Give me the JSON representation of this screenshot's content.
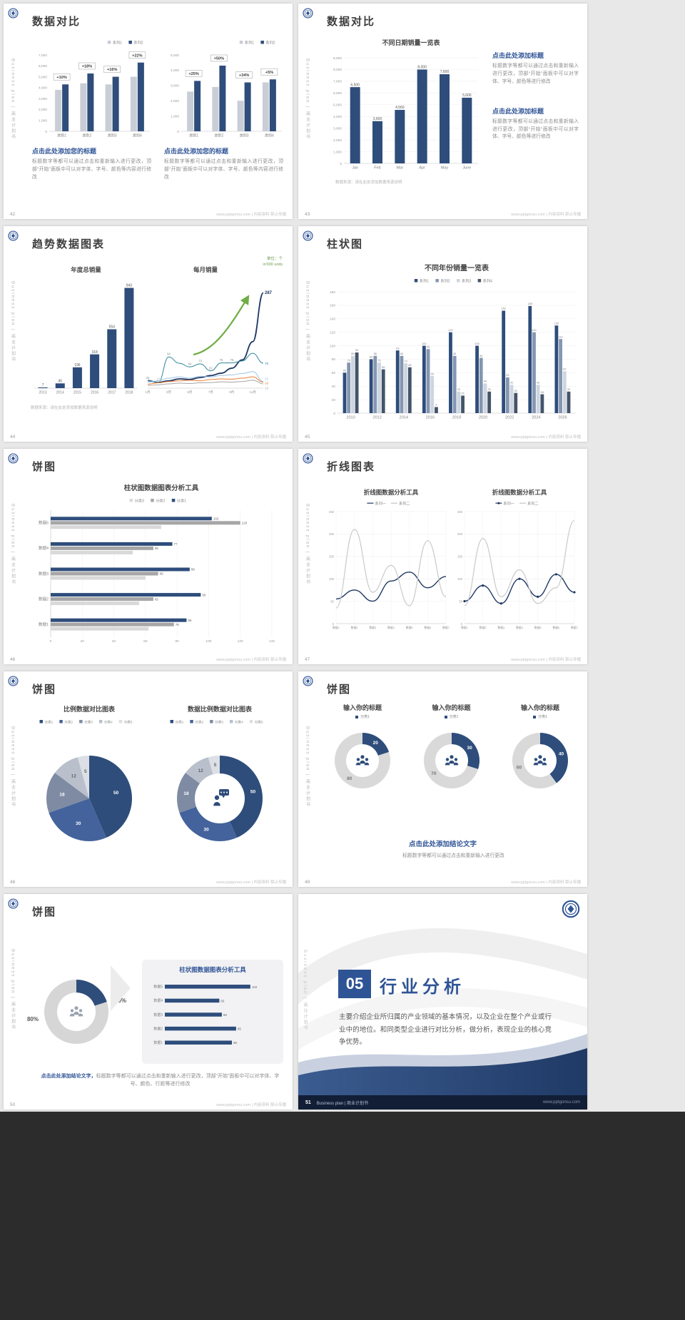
{
  "common": {
    "brand_vertical": "Business plan | 商业计划书",
    "footer_watermark": "www.pptgonsu.com | 内容资料 禁止传播"
  },
  "colors": {
    "navy": "#2e4d7b",
    "dark_navy": "#1f3864",
    "accent": "#2f5496",
    "steel": "#8496b0",
    "slate": "#44546a",
    "gray": "#a6a6a6",
    "silver": "#d9d9d9",
    "light": "#cdd5e0",
    "ash": "#c8cdd6",
    "green": "#70ad47",
    "teal": "#31859b",
    "sky": "#9dc3e6",
    "orange": "#ed7d31"
  },
  "slides": [
    {
      "number": "42",
      "title": "数据对比",
      "charts": [
        {
          "type": "bar",
          "legend": [
            "系列1",
            "系列2"
          ],
          "categories": [
            "类别1",
            "类别2",
            "类别3",
            "类别4"
          ],
          "series": [
            {
              "name": "系列1",
              "values": [
                3800,
                4400,
                4300,
                5000
              ]
            },
            {
              "name": "系列2",
              "values": [
                4300,
                5300,
                5000,
                6300
              ]
            }
          ],
          "callouts": [
            "+10%",
            "+18%",
            "+16%",
            "+22%"
          ],
          "ymax": 7000,
          "ytick_step": 1000
        },
        {
          "type": "bar",
          "legend": [
            "系列1",
            "系列2"
          ],
          "categories": [
            "类别1",
            "类别2",
            "类别3",
            "类别4"
          ],
          "series": [
            {
              "name": "系列1",
              "values": [
                2600,
                2900,
                2000,
                3200
              ]
            },
            {
              "name": "系列2",
              "values": [
                3300,
                4300,
                3200,
                3400
              ]
            }
          ],
          "callouts": [
            "+25%",
            "+50%",
            "+34%",
            "+5%"
          ],
          "ymax": 5000,
          "ytick_step": 1000
        }
      ],
      "blocks": [
        {
          "heading": "点击此处添加您的标题",
          "body": "标题数字等都可以通过点击和重新输入进行更改，顶部“开始”面板中可以对字体、字号、颜色等内容进行修改"
        },
        {
          "heading": "点击此处添加您的标题",
          "body": "标题数字等都可以通过点击和重新输入进行更改，顶部“开始”面板中可以对字体、字号、颜色等内容进行修改"
        }
      ]
    },
    {
      "number": "43",
      "title": "数据对比",
      "chart": {
        "type": "bar",
        "title": "不同日期销量一览表",
        "categories": [
          "Jan",
          "Feb",
          "Mar",
          "Apr",
          "May",
          "June"
        ],
        "values": [
          6500,
          3600,
          4560,
          8000,
          7600,
          5600
        ],
        "ymax": 9000,
        "ytick_step": 1000
      },
      "blocks": [
        {
          "heading": "点击此处添加标题",
          "body": "标题数字等都可以通过点击和重新输入进行更改，顶部“开始”面板中可以对字体、字号、颜色等进行修改"
        },
        {
          "heading": "点击此处添加标题",
          "body": "标题数字等都可以通过点击和重新输入进行更改，顶部“开始”面板中可以对字体、字号、颜色等进行修改"
        }
      ],
      "source_note": "数据来源：请在此处添加数据来源说明"
    },
    {
      "number": "44",
      "title": "趋势数据图表",
      "unit_note_1": "单位：个",
      "unit_note_2": "in'000 units",
      "bar": {
        "type": "bar",
        "title": "年度总销量",
        "categories": [
          "2013",
          "2014",
          "2015",
          "2016",
          "2017",
          "2018"
        ],
        "values": [
          7,
          45,
          196,
          318,
          554,
          943
        ],
        "ymax": 1000
      },
      "line": {
        "type": "line",
        "title": "每月销量",
        "xlabels": [
          "1月",
          "3月",
          "5月",
          "7月",
          "9月",
          "11月"
        ],
        "ymax": 320,
        "series": [
          {
            "name": "系列1",
            "color": "dark_navy",
            "width": 1.8,
            "values": [
              23,
              17,
              22,
              28,
              26,
              32,
              38,
              45,
              60,
              85,
              140,
              287
            ],
            "end": "287"
          },
          {
            "name": "系列2",
            "color": "teal",
            "width": 1,
            "values": [
              23,
              17,
              94,
              75,
              64,
              73,
              52,
              76,
              76,
              82,
              105,
              75
            ],
            "end": "75",
            "point_labels": [
              "23",
              "17",
              "94",
              "",
              "64",
              "73",
              "52",
              "76",
              "76",
              "",
              "",
              ""
            ]
          },
          {
            "name": "系列3",
            "color": "sky",
            "width": 1,
            "values": [
              18,
              22,
              30,
              34,
              30,
              36,
              34,
              38,
              40,
              44,
              50,
              20
            ],
            "end": "20"
          },
          {
            "name": "系列4",
            "color": "orange",
            "width": 1,
            "values": [
              12,
              16,
              20,
              22,
              24,
              22,
              26,
              28,
              27,
              30,
              34,
              18
            ],
            "end": "18"
          },
          {
            "name": "系列5",
            "color": "gray",
            "width": 1,
            "values": [
              8,
              10,
              13,
              15,
              14,
              16,
              17,
              19,
              18,
              20,
              24,
              13
            ],
            "end": "13"
          }
        ]
      },
      "source_note": "数据来源：请在此处添加数据来源说明"
    },
    {
      "number": "45",
      "title": "柱状图",
      "chart": {
        "type": "bar",
        "title": "不同年份销量一览表",
        "legend": [
          "系列1",
          "系列2",
          "系列3",
          "系列4"
        ],
        "categories": [
          "2010",
          "2012",
          "2014",
          "2016",
          "2018",
          "2020",
          "2022",
          "2024",
          "2026"
        ],
        "series": [
          {
            "name": "系列1",
            "values": [
              60,
              80,
              93,
              100,
              120,
              100,
              152,
              159,
              130
            ]
          },
          {
            "name": "系列2",
            "values": [
              75,
              85,
              85,
              95,
              85,
              82,
              53,
              120,
              110
            ]
          },
          {
            "name": "系列3",
            "values": [
              85,
              75,
              74,
              55,
              32,
              44,
              42,
              42,
              62
            ]
          },
          {
            "name": "系列4",
            "values": [
              90,
              65,
              68,
              9,
              26,
              32,
              30,
              28,
              32
            ]
          }
        ],
        "ymax": 180,
        "ytick_step": 20
      }
    },
    {
      "number": "46",
      "title": "饼图",
      "chart": {
        "type": "hbar",
        "title": "柱状图数据图表分析工具",
        "legend": [
          "分类3",
          "分类2",
          "分类1"
        ],
        "categories": [
          "数据5",
          "数据4",
          "数据3",
          "数据2",
          "数据1"
        ],
        "series": [
          {
            "name": "分类1",
            "values": [
              102,
              77,
              88,
              95,
              86
            ]
          },
          {
            "name": "分类2",
            "values": [
              120,
              65,
              68,
              65,
              78
            ]
          },
          {
            "name": "分类3",
            "values": [
              70,
              52,
              60,
              56,
              62
            ]
          }
        ],
        "xmax": 140,
        "xtick_step": 20
      }
    },
    {
      "number": "47",
      "title": "折线图表",
      "charts": [
        {
          "type": "line",
          "title": "折线图数据分析工具",
          "legend": [
            "系列一",
            "系列二"
          ],
          "xlabels": [
            "数据1",
            "数据2",
            "数据3",
            "数据4",
            "数据5",
            "数据6",
            "数据7"
          ],
          "ymax": 250,
          "ytick_step": 50,
          "series": [
            {
              "name": "系列一",
              "values": [
                55,
                75,
                50,
                95,
                115,
                80,
                105
              ]
            },
            {
              "name": "系列二",
              "values": [
                35,
                210,
                70,
                130,
                40,
                185,
                60
              ]
            }
          ]
        },
        {
          "type": "line",
          "title": "折线图数据分析工具",
          "legend": [
            "系列一",
            "系列二"
          ],
          "xlabels": [
            "数据1",
            "数据2",
            "数据3",
            "数据4",
            "数据5",
            "数据6",
            "数据7"
          ],
          "ymax": 250,
          "ytick_step": 50,
          "series": [
            {
              "name": "系列一",
              "values": [
                50,
                85,
                45,
                100,
                60,
                110,
                70
              ]
            },
            {
              "name": "系列二",
              "values": [
                40,
                190,
                60,
                120,
                45,
                80,
                230
              ]
            }
          ]
        }
      ]
    },
    {
      "number": "48",
      "title": "饼图",
      "pies": [
        {
          "type": "pie",
          "title": "比例数据对比图表",
          "legend": [
            "分类1",
            "分类2",
            "分类3",
            "分类4",
            "分类5"
          ],
          "values": [
            50,
            30,
            18,
            12,
            5
          ]
        },
        {
          "type": "donut",
          "title": "数据比例数据对比图表",
          "legend": [
            "分类1",
            "分类2",
            "分类3",
            "分类4",
            "分类5"
          ],
          "values": [
            50,
            30,
            18,
            12,
            5
          ]
        }
      ]
    },
    {
      "number": "49",
      "title": "饼图",
      "donuts": [
        {
          "type": "donut",
          "title": "输入你的标题",
          "legend": "分类1",
          "values": [
            20,
            80
          ]
        },
        {
          "type": "donut",
          "title": "输入你的标题",
          "legend": "分类1",
          "values": [
            30,
            70
          ]
        },
        {
          "type": "donut",
          "title": "输入你的标题",
          "legend": "分类1",
          "values": [
            40,
            60
          ]
        }
      ],
      "conclusion_heading": "点击此处添加结论文字",
      "conclusion_body": "标题数字等都可以通过点击和重新输入进行更改"
    },
    {
      "number": "50",
      "title": "饼图",
      "donut": {
        "type": "donut",
        "values": [
          20,
          80
        ],
        "labels": [
          "20%",
          "80%"
        ]
      },
      "panel": {
        "type": "hbar",
        "title": "柱状图数据图表分析工具",
        "categories": [
          "数据5",
          "数据4",
          "数据3",
          "数据2",
          "数据1"
        ],
        "values": [
          102,
          65,
          68,
          85,
          80
        ],
        "xmax": 120
      },
      "conclusion_heading": "点击此处添加结论文字，",
      "conclusion_body": "标题数字等都可以通过点击和重新输入进行更改，顶部“开始”面板中可以对字体、字号、颜色、行距等进行修改"
    },
    {
      "number": "51",
      "section_number": "05",
      "section_title": "行业分析",
      "body": "主要介绍企业所归属的产业领域的基本情况，以及企业在整个产业或行业中的地位。和同类型企业进行对比分析，做分析，表现企业的核心竞争优势。",
      "footer_left": "Business plan | 商业计划书",
      "footer_right": "www.pptgonsu.com"
    }
  ]
}
